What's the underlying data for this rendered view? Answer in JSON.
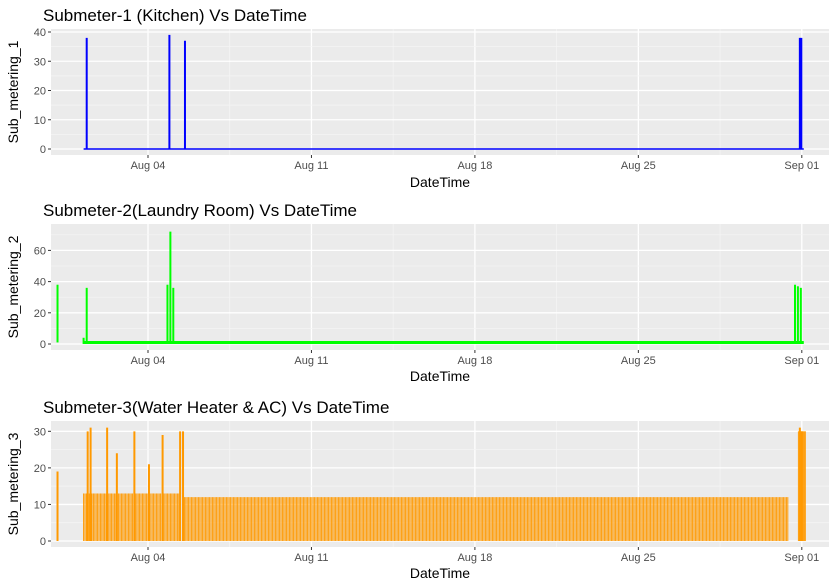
{
  "chart_data": [
    {
      "type": "line",
      "title": "Submeter-1 (Kitchen) Vs DateTime",
      "xlabel": "DateTime",
      "ylabel": "Sub_metering_1",
      "x_range": [
        "2008-07-31",
        "2008-09-01"
      ],
      "ylim": [
        0,
        40
      ],
      "x_ticks": [
        "Aug 04",
        "Aug 11",
        "Aug 18",
        "Aug 25",
        "Sep 01"
      ],
      "y_ticks": [
        "0",
        "10",
        "20",
        "30",
        "40"
      ],
      "color": "#0000ff",
      "grid": true,
      "baseline": 0,
      "series": [
        {
          "x": [
            "2008-08-01 09:00",
            "2008-08-04 22:00",
            "2008-08-05 14:00",
            "2008-08-31 22:00",
            "2008-08-31 23:30"
          ],
          "values": [
            38,
            39,
            37,
            38,
            38
          ]
        }
      ]
    },
    {
      "type": "line",
      "title": "Submeter-2(Laundry Room) Vs DateTime",
      "xlabel": "DateTime",
      "ylabel": "Sub_metering_2",
      "x_range": [
        "2008-07-31",
        "2008-09-01"
      ],
      "ylim": [
        0,
        75
      ],
      "x_ticks": [
        "Aug 04",
        "Aug 11",
        "Aug 18",
        "Aug 25",
        "Sep 01"
      ],
      "y_ticks": [
        "0",
        "20",
        "40",
        "60"
      ],
      "color": "#00ff00",
      "grid": true,
      "baseline": 1,
      "series": [
        {
          "x": [
            "2008-07-31 03:00",
            "2008-08-01 09:00",
            "2008-08-04 20:00",
            "2008-08-04 23:00",
            "2008-08-05 02:00",
            "2008-08-31 17:00",
            "2008-08-31 20:00",
            "2008-08-31 23:00"
          ],
          "values": [
            38,
            36,
            38,
            72,
            36,
            38,
            37,
            36
          ]
        }
      ]
    },
    {
      "type": "line",
      "title": "Submeter-3(Water Heater & AC) Vs DateTime",
      "xlabel": "DateTime",
      "ylabel": "Sub_metering_3",
      "x_range": [
        "2008-07-31",
        "2008-09-01"
      ],
      "ylim": [
        0,
        32
      ],
      "x_ticks": [
        "Aug 04",
        "Aug 11",
        "Aug 18",
        "Aug 25",
        "Sep 01"
      ],
      "y_ticks": [
        "0",
        "10",
        "20",
        "30"
      ],
      "color": "#ff9900",
      "grid": true,
      "typical_high_early": 13,
      "typical_high_late": 12,
      "peaks": {
        "x": [
          "2008-07-31 03:00",
          "2008-08-01 10:00",
          "2008-08-01 13:00",
          "2008-08-02 06:00",
          "2008-08-02 16:00",
          "2008-08-03 10:00",
          "2008-08-04 01:00",
          "2008-08-04 15:00",
          "2008-08-05 09:00",
          "2008-08-05 12:00",
          "2008-08-31 22:00",
          "2008-09-01 00:00"
        ],
        "values": [
          19,
          30,
          31,
          31,
          24,
          30,
          21,
          29,
          30,
          30,
          31,
          30
        ]
      }
    }
  ]
}
